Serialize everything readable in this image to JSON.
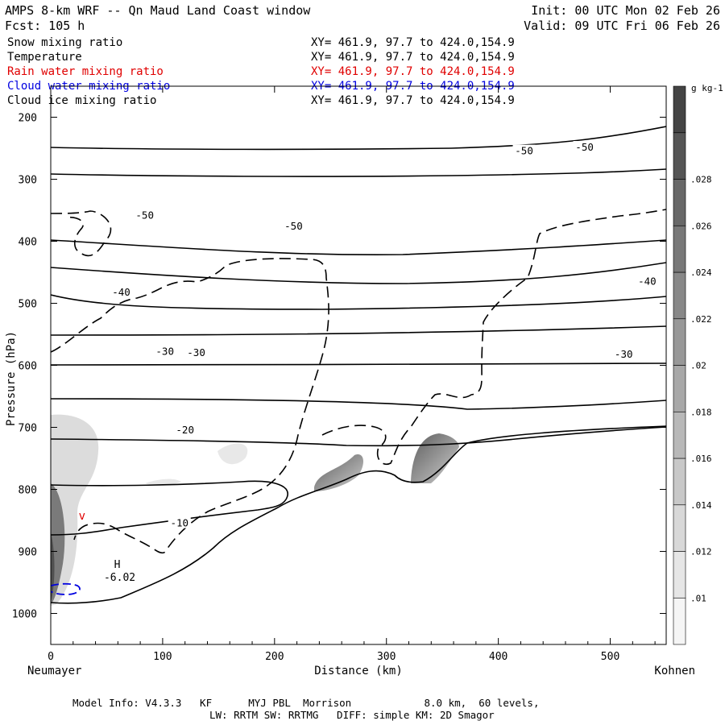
{
  "header": {
    "title": "AMPS 8-km WRF -- Qn Maud Land Coast window",
    "fcst": "Fcst:  105 h",
    "init": "Init: 00 UTC Mon 02 Feb 26",
    "valid": "Valid: 09 UTC Fri 06 Feb 26"
  },
  "fields": [
    {
      "name": "Snow mixing ratio",
      "xy": "XY= 461.9, 97.7 to 424.0,154.9",
      "color": "#000000"
    },
    {
      "name": "Temperature",
      "xy": "XY= 461.9, 97.7 to 424.0,154.9",
      "color": "#000000"
    },
    {
      "name": "Rain water mixing ratio",
      "xy": "XY= 461.9, 97.7 to 424.0,154.9",
      "color": "#e00000"
    },
    {
      "name": "Cloud water mixing ratio",
      "xy": "XY= 461.9, 97.7 to 424.0,154.9",
      "color": "#0000e0"
    },
    {
      "name": "Cloud ice mixing ratio",
      "xy": "XY= 461.9, 97.7 to 424.0,154.9",
      "color": "#000000"
    }
  ],
  "chart_data": {
    "type": "cross-section contour",
    "xlabel": "Distance (km)",
    "ylabel": "Pressure (hPa)",
    "xlim": [
      0,
      550
    ],
    "ylim": [
      1050,
      150
    ],
    "x_ticks": [
      0,
      100,
      200,
      300,
      400,
      500
    ],
    "y_ticks": [
      200,
      300,
      400,
      500,
      600,
      700,
      800,
      900,
      1000
    ],
    "left_endpoint": "Neumayer",
    "right_endpoint": "Kohnen",
    "temperature_contour_labels": [
      {
        "label": "-50",
        "x": 84,
        "p": 360
      },
      {
        "label": "-50",
        "x": 217,
        "p": 377
      },
      {
        "label": "-50",
        "x": 423,
        "p": 256
      },
      {
        "label": "-50",
        "x": 477,
        "p": 250
      },
      {
        "label": "-40",
        "x": 63,
        "p": 484
      },
      {
        "label": "-40",
        "x": 533,
        "p": 466
      },
      {
        "label": "-30",
        "x": 102,
        "p": 579
      },
      {
        "label": "-30",
        "x": 130,
        "p": 581
      },
      {
        "label": "-30",
        "x": 512,
        "p": 584
      },
      {
        "label": "-20",
        "x": 120,
        "p": 706
      },
      {
        "label": "-10",
        "x": 115,
        "p": 856
      }
    ],
    "extremum": {
      "label": "H",
      "value": "-6.02",
      "x": 58,
      "p": 937
    },
    "rain_marker": {
      "label": "v",
      "x": 28,
      "p": 842
    },
    "colorbar": {
      "units": "g kg-1",
      "ticks": [
        ".01",
        ".012",
        ".014",
        ".016",
        ".018",
        ".02",
        ".022",
        ".024",
        ".026",
        ".028"
      ],
      "colors": [
        "#f5f5f5",
        "#e6e6e6",
        "#d8d8d8",
        "#c8c8c8",
        "#b8b8b8",
        "#a8a8a8",
        "#989898",
        "#888888",
        "#787878",
        "#686868",
        "#555555",
        "#444444"
      ]
    }
  },
  "footer": {
    "line1": "Model Info: V4.3.3   KF      MYJ PBL  Morrison            8.0 km,  60 levels,",
    "line2": "LW: RRTM SW: RRTMG   DIFF: simple KM: 2D Smagor"
  }
}
